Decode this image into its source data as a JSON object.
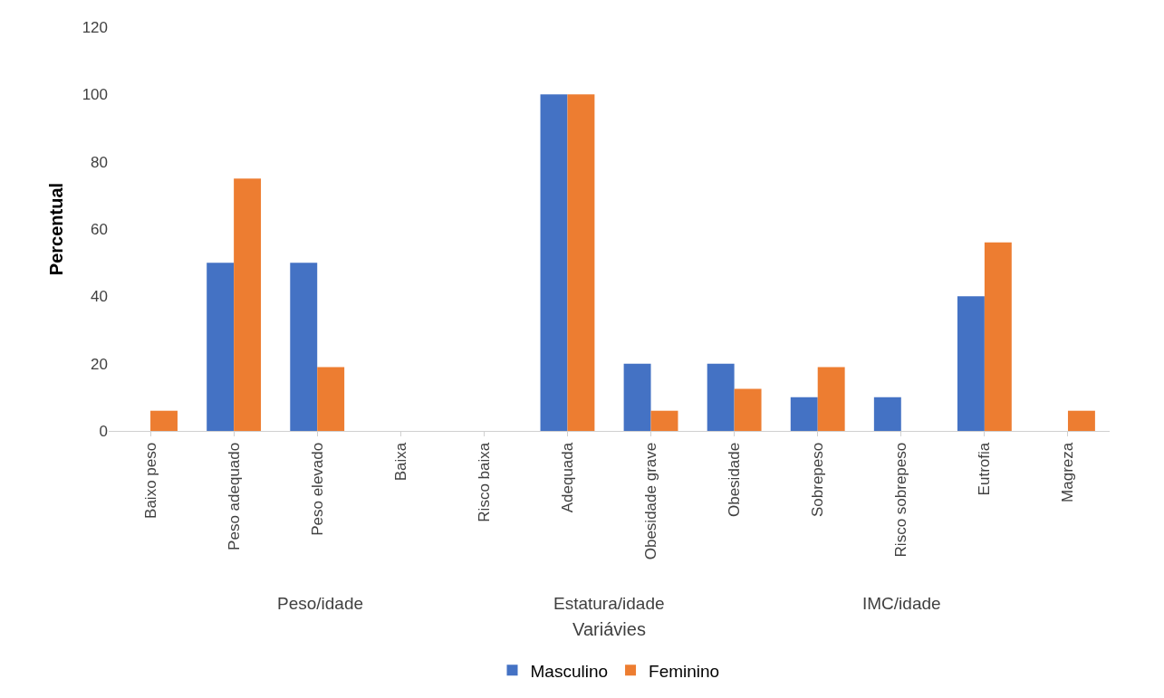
{
  "chart_data": {
    "type": "bar",
    "xlabel": "Variávies",
    "ylabel": "Percentual",
    "categories": [
      "Baixo peso",
      "Peso adequado",
      "Peso elevado",
      "Baixa",
      "Risco baixa",
      "Adequada",
      "Obesidade grave",
      "Obesidade",
      "Sobrepeso",
      "Risco sobrepeso",
      "Eutrofia",
      "Magreza"
    ],
    "series": [
      {
        "name": "Masculino",
        "color": "#4472c4",
        "values": [
          0,
          50,
          50,
          0,
          0,
          100,
          20,
          20,
          10,
          10,
          40,
          0
        ]
      },
      {
        "name": "Feminino",
        "color": "#ed7d31",
        "values": [
          6,
          75,
          19,
          0,
          0,
          100,
          6,
          12.5,
          19,
          0,
          56,
          6
        ]
      }
    ],
    "annotations": [
      "Peso/idade",
      "Estatura/idade",
      "IMC/idade"
    ],
    "ylim": [
      0,
      120
    ],
    "yticks": [
      0,
      20,
      40,
      60,
      80,
      100,
      120
    ],
    "grid": false,
    "legend": "bottom"
  }
}
